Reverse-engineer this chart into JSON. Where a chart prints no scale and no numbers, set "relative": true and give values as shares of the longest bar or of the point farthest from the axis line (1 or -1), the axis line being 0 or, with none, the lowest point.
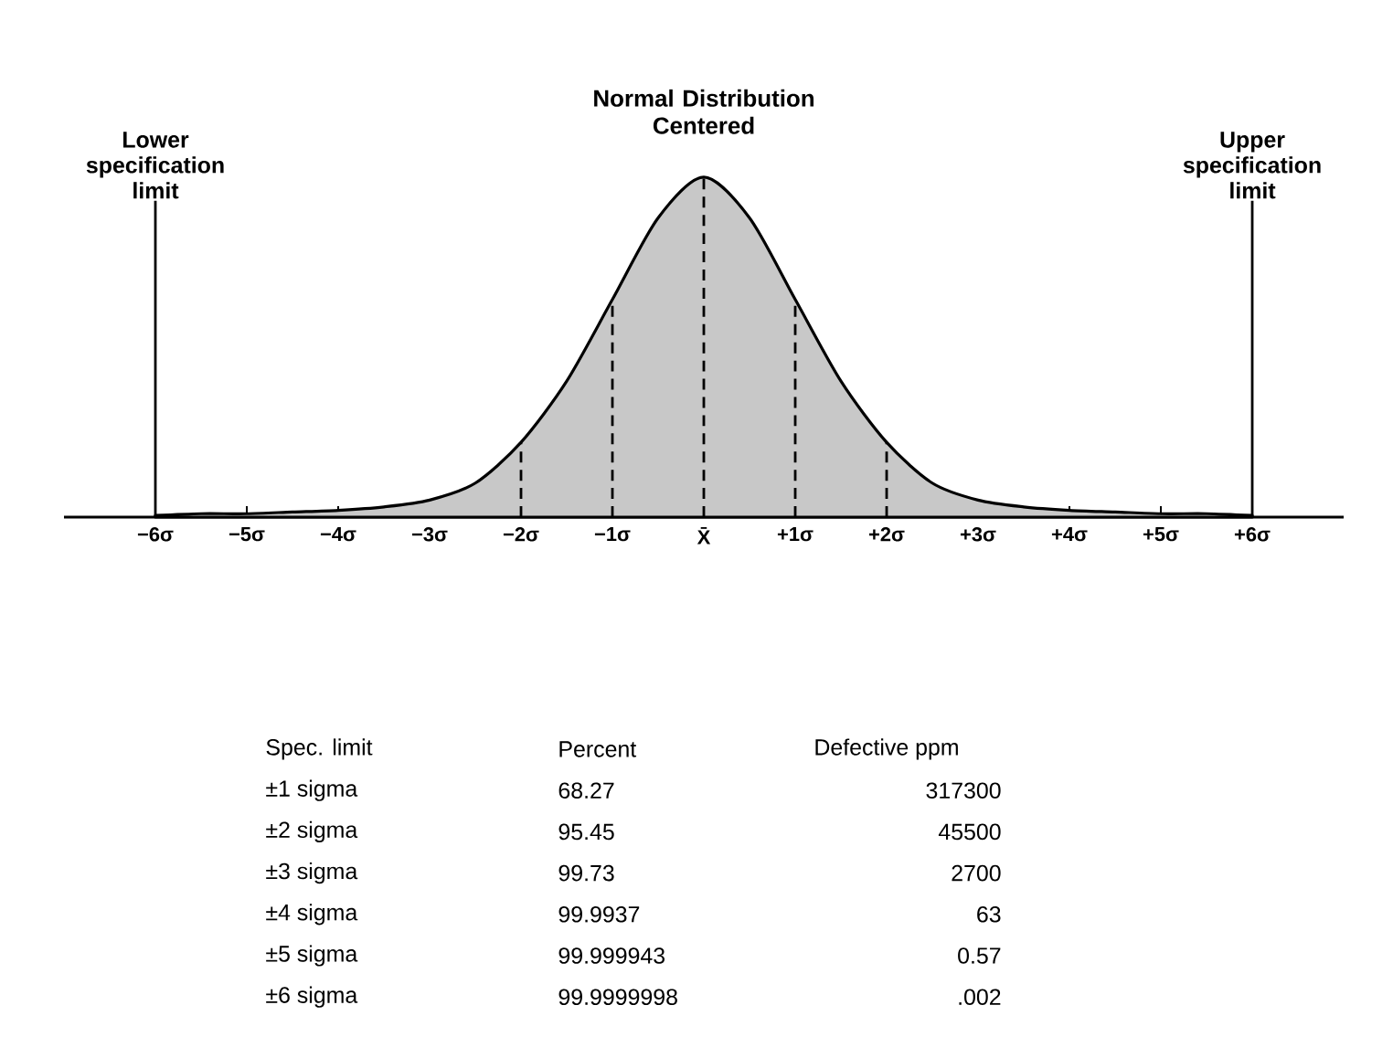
{
  "chart_data": {
    "type": "area",
    "title": "Normal Distribution Centered",
    "relative": true,
    "x": [
      -6,
      -5.5,
      -5,
      -4.5,
      -4,
      -3.5,
      -3,
      -2.5,
      -2,
      -1.5,
      -1,
      -0.5,
      0,
      0.5,
      1,
      1.5,
      2,
      2.5,
      3,
      3.5,
      4,
      4.5,
      5,
      5.5,
      6
    ],
    "values": [
      0.005,
      0.01,
      0.01,
      0.015,
      0.02,
      0.03,
      0.05,
      0.1,
      0.22,
      0.4,
      0.64,
      0.88,
      1,
      0.88,
      0.64,
      0.4,
      0.22,
      0.1,
      0.05,
      0.03,
      0.02,
      0.015,
      0.01,
      0.01,
      0.005
    ],
    "color": "#c8c8c8",
    "xlim": [
      -7,
      7
    ],
    "xticks": [
      {
        "value": -6,
        "label": "−6σ"
      },
      {
        "value": -5,
        "label": "−5σ"
      },
      {
        "value": -4,
        "label": "−4σ"
      },
      {
        "value": -3,
        "label": "−3σ"
      },
      {
        "value": -2,
        "label": "−2σ"
      },
      {
        "value": -1,
        "label": "−1σ"
      },
      {
        "value": 0,
        "label": "X̄"
      },
      {
        "value": 1,
        "label": "+1σ"
      },
      {
        "value": 2,
        "label": "+2σ"
      },
      {
        "value": 3,
        "label": "+3σ"
      },
      {
        "value": 4,
        "label": "+4σ"
      },
      {
        "value": 5,
        "label": "+5σ"
      },
      {
        "value": 6,
        "label": "+6σ"
      }
    ],
    "ref_lines": [
      {
        "axis": "x",
        "value": -6,
        "label": "Lower specification limit"
      },
      {
        "axis": "x",
        "value": 6,
        "label": "Upper specification limit"
      },
      {
        "axis": "x",
        "value": -2,
        "line_style": "dashed"
      },
      {
        "axis": "x",
        "value": -1,
        "line_style": "dashed"
      },
      {
        "axis": "x",
        "value": 0,
        "line_style": "dashed"
      },
      {
        "axis": "x",
        "value": 1,
        "line_style": "dashed"
      },
      {
        "axis": "x",
        "value": 2,
        "line_style": "dashed"
      }
    ],
    "annotations": [
      "Spec. limit",
      "Percent",
      "Defective ppm",
      "±1 sigma",
      "68.27",
      "317300",
      "±2 sigma",
      "95.45",
      "45500",
      "±3 sigma",
      "99.73",
      "2700",
      "±4 sigma",
      "99.9937",
      "63",
      "±5 sigma",
      "99.999943",
      "0.57",
      "±6 sigma",
      "99.9999998",
      ".002"
    ],
    "grid": false
  }
}
